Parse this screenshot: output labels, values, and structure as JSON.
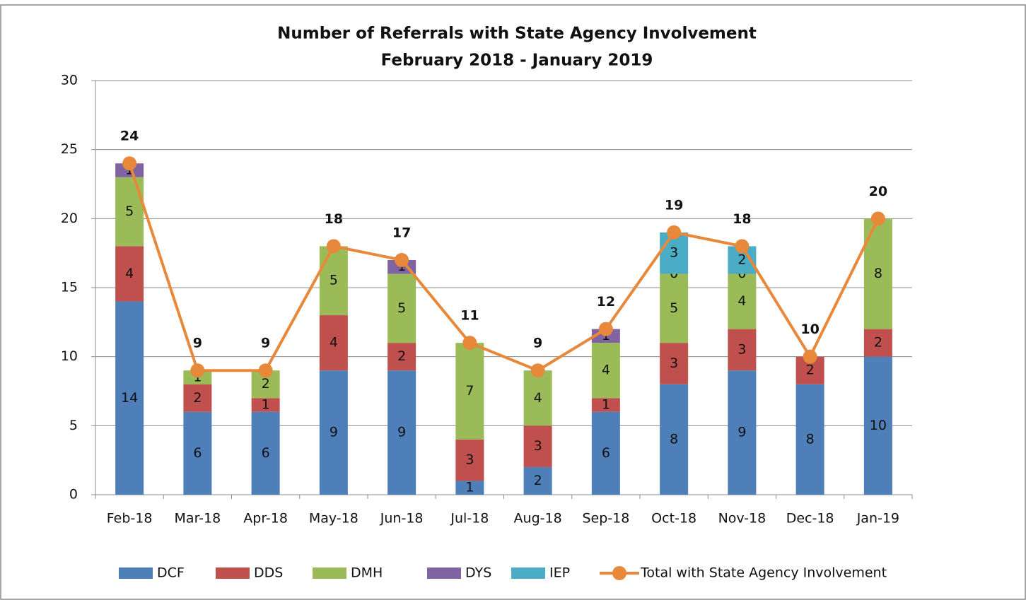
{
  "chart_data": {
    "type": "bar",
    "stacked": true,
    "title": "Number of Referrals with State Agency Involvement",
    "subtitle": "February 2018 - January 2019",
    "categories": [
      "Feb-18",
      "Mar-18",
      "Apr-18",
      "May-18",
      "Jun-18",
      "Jul-18",
      "Aug-18",
      "Sep-18",
      "Oct-18",
      "Nov-18",
      "Dec-18",
      "Jan-19"
    ],
    "series": [
      {
        "name": "DCF",
        "color": "#4f7fb8",
        "values": [
          14,
          6,
          6,
          9,
          9,
          1,
          2,
          6,
          8,
          9,
          8,
          10
        ]
      },
      {
        "name": "DDS",
        "color": "#c0504d",
        "values": [
          4,
          2,
          1,
          4,
          2,
          3,
          3,
          1,
          3,
          3,
          2,
          2
        ]
      },
      {
        "name": "DMH",
        "color": "#9bbb59",
        "values": [
          5,
          1,
          2,
          5,
          5,
          7,
          4,
          4,
          5,
          4,
          0,
          8
        ]
      },
      {
        "name": "DYS",
        "color": "#8064a2",
        "values": [
          1,
          0,
          0,
          0,
          1,
          0,
          0,
          1,
          0,
          0,
          0,
          0
        ]
      },
      {
        "name": "IEP",
        "color": "#4bacc6",
        "values": [
          0,
          0,
          0,
          0,
          0,
          0,
          0,
          0,
          3,
          2,
          0,
          0
        ]
      },
      {
        "name": "Total with State Agency Involvement",
        "type": "line",
        "color": "#e8883a",
        "values": [
          24,
          9,
          9,
          18,
          17,
          11,
          9,
          12,
          19,
          18,
          10,
          20
        ]
      }
    ],
    "ylim": [
      0,
      30
    ],
    "yticks": [
      0,
      5,
      10,
      15,
      20,
      25,
      30
    ],
    "grid": true,
    "legend": "bottom"
  }
}
